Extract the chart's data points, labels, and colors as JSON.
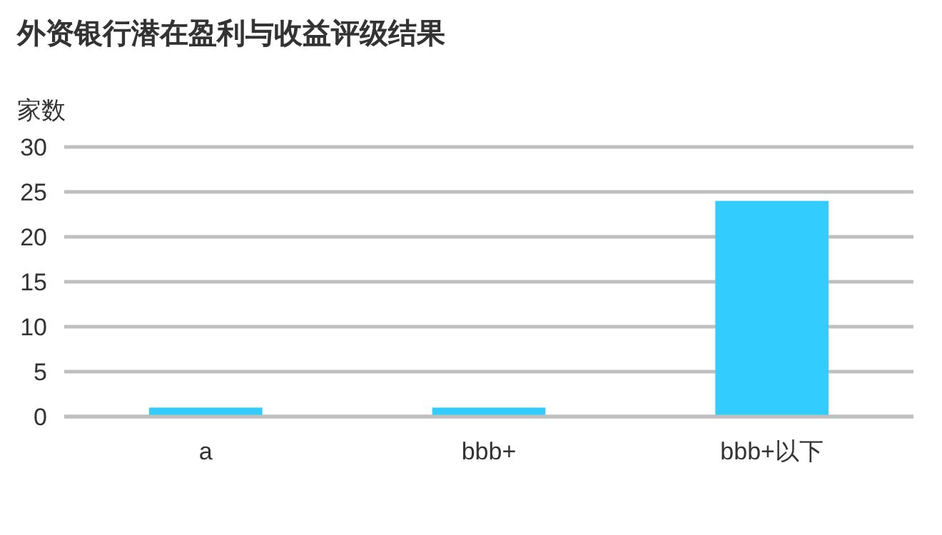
{
  "chart_data": {
    "type": "bar",
    "title": "外资银行潜在盈利与收益评级结果",
    "ylabel": "家数",
    "categories": [
      "a",
      "bbb+",
      "bbb+以下"
    ],
    "values": [
      1,
      1,
      24
    ],
    "color": "#33ccff",
    "ylim": [
      0,
      30
    ],
    "yticks": [
      0,
      5,
      10,
      15,
      20,
      25,
      30
    ],
    "grid": "y"
  }
}
